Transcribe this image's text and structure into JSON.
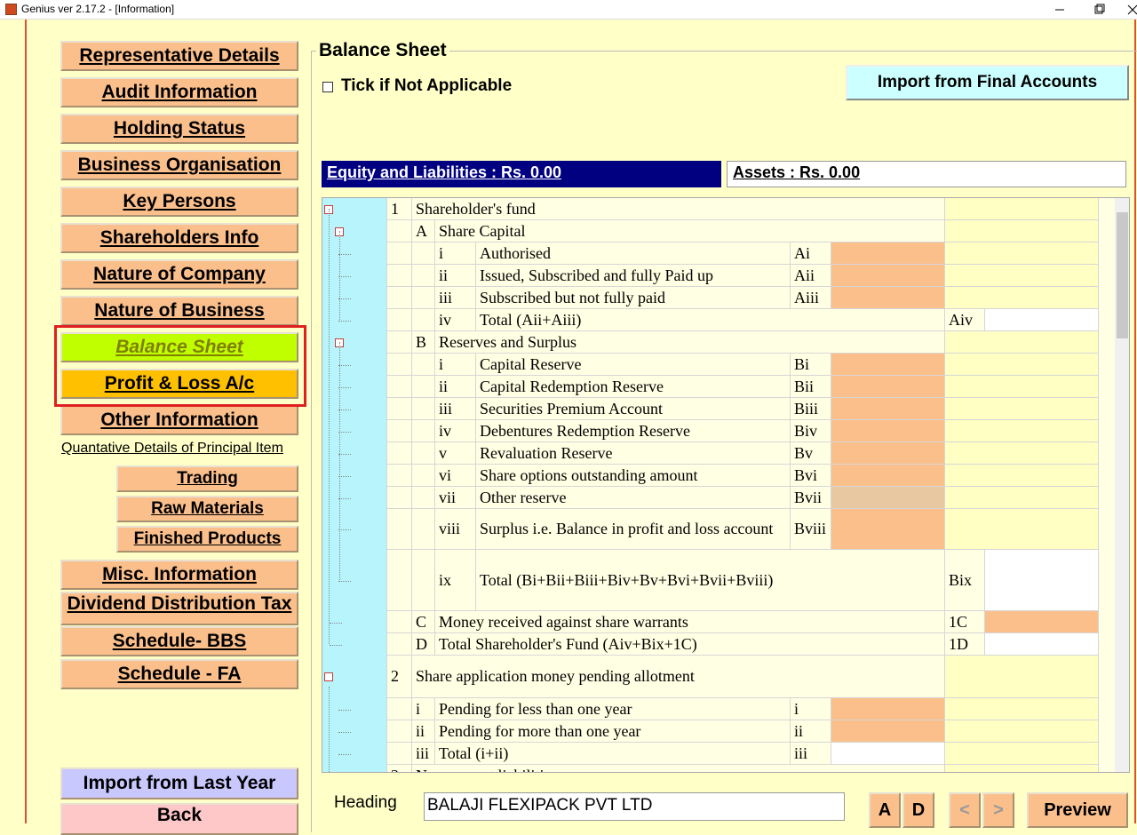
{
  "window": {
    "title": "Genius ver 2.17.2 - [Information]"
  },
  "sidebar": {
    "buttons": [
      "Representative Details",
      "Audit Information",
      "Holding Status",
      "Business Organisation",
      "Key Persons",
      "Shareholders Info",
      "Nature of Company",
      "Nature of Business",
      "Balance Sheet",
      "Profit & Loss A/c",
      "Other Information"
    ],
    "link": "Quantative Details of Principal Item",
    "sub_buttons": [
      "Trading",
      "Raw Materials",
      "Finished Products"
    ],
    "more_buttons": [
      "Misc. Information",
      "Dividend Distribution Tax",
      "Schedule- BBS",
      "Schedule - FA"
    ],
    "import_button": "Import from Last Year",
    "back_button": "Back"
  },
  "main": {
    "title": "Balance Sheet",
    "checkbox_label": "Tick if Not Applicable",
    "import_button": "Import from Final Accounts",
    "tabs": [
      "Equity and Liabilities : Rs. 0.00",
      "Assets : Rs. 0.00"
    ],
    "table": {
      "rows": [
        [
          "1",
          "Shareholder's fund"
        ],
        [
          "A",
          "Share Capital"
        ],
        [
          "i",
          "Authorised",
          "Ai"
        ],
        [
          "ii",
          "Issued, Subscribed and fully Paid up",
          "Aii"
        ],
        [
          "iii",
          "Subscribed but not fully paid",
          "Aiii"
        ],
        [
          "iv",
          "Total (Aii+Aiii)",
          "Aiv"
        ],
        [
          "B",
          "Reserves and Surplus"
        ],
        [
          "i",
          "Capital Reserve",
          "Bi"
        ],
        [
          "ii",
          "Capital Redemption Reserve",
          "Bii"
        ],
        [
          "iii",
          "Securities Premium Account",
          "Biii"
        ],
        [
          "iv",
          "Debentures Redemption Reserve",
          "Biv"
        ],
        [
          "v",
          "Revaluation Reserve",
          "Bv"
        ],
        [
          "vi",
          "Share options outstanding amount",
          "Bvi"
        ],
        [
          "vii",
          "Other reserve",
          "Bvii"
        ],
        [
          "viii",
          "Surplus i.e. Balance in profit and loss account",
          "Bviii"
        ],
        [
          "ix",
          "Total (Bi+Bii+Biii+Biv+Bv+Bvi+Bvii+Bviii)",
          "Bix"
        ],
        [
          "C",
          "Money received against share warrants",
          "1C"
        ],
        [
          "D",
          "Total Shareholder's Fund (Aiv+Bix+1C)",
          "1D"
        ],
        [
          "2",
          "Share application money pending allotment"
        ],
        [
          "i",
          "Pending for less than one year",
          "i"
        ],
        [
          "ii",
          "Pending for more than one year",
          "ii"
        ],
        [
          "iii",
          "Total (i+ii)",
          "iii"
        ],
        [
          "3",
          "Non-current liabilities"
        ]
      ]
    }
  },
  "footer": {
    "heading_label": "Heading",
    "heading_value": "BALAJI FLEXIPACK PVT LTD",
    "buttons": [
      "A",
      "D",
      "<",
      ">",
      "Preview"
    ]
  }
}
